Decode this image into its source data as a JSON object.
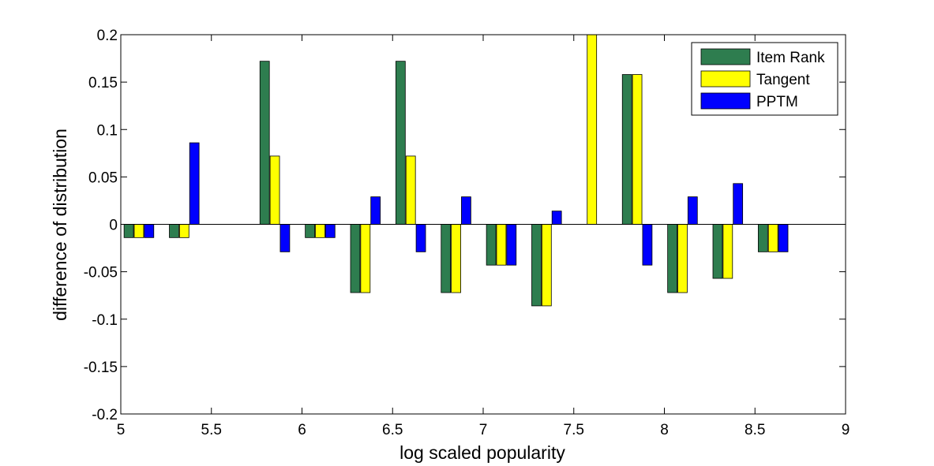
{
  "chart_data": {
    "type": "bar",
    "title": "",
    "xlabel": "log scaled popularity",
    "ylabel": "difference of distribution",
    "xlim": [
      5,
      9
    ],
    "ylim": [
      -0.2,
      0.2
    ],
    "x_ticks": [
      5,
      5.5,
      6,
      6.5,
      7,
      7.5,
      8,
      8.5,
      9
    ],
    "x_tick_labels": [
      "5",
      "5.5",
      "6",
      "6.5",
      "7",
      "7.5",
      "8",
      "8.5",
      "9"
    ],
    "y_ticks": [
      0.2,
      0.15,
      0.1,
      0.05,
      0,
      -0.05,
      -0.1,
      -0.15,
      -0.2
    ],
    "y_tick_labels": [
      "0.2",
      "0.15",
      "0.1",
      "0.05",
      "0",
      "-0.05",
      "-0.1",
      "-0.15",
      "-0.2"
    ],
    "x": [
      5.1,
      5.35,
      5.85,
      6.1,
      6.35,
      6.6,
      6.85,
      7.1,
      7.35,
      7.6,
      7.85,
      8.1,
      8.35,
      8.6
    ],
    "series": [
      {
        "name": "Item Rank",
        "color": "#2e7d4f",
        "values": [
          -0.014,
          -0.014,
          0.172,
          -0.014,
          -0.072,
          0.172,
          -0.072,
          -0.043,
          -0.086,
          0,
          0.158,
          -0.072,
          -0.057,
          -0.029
        ]
      },
      {
        "name": "Tangent",
        "color": "#ffff00",
        "values": [
          -0.014,
          -0.014,
          0.072,
          -0.014,
          -0.072,
          0.072,
          -0.072,
          -0.043,
          -0.086,
          0.2,
          0.158,
          -0.072,
          -0.057,
          -0.029
        ]
      },
      {
        "name": "PPTM",
        "color": "#0000ff",
        "values": [
          -0.014,
          0.086,
          -0.029,
          -0.014,
          0.029,
          -0.029,
          0.029,
          -0.043,
          0.014,
          0,
          -0.043,
          0.029,
          0.043,
          -0.029
        ]
      }
    ],
    "grid": false,
    "legend_position": "top-right"
  }
}
